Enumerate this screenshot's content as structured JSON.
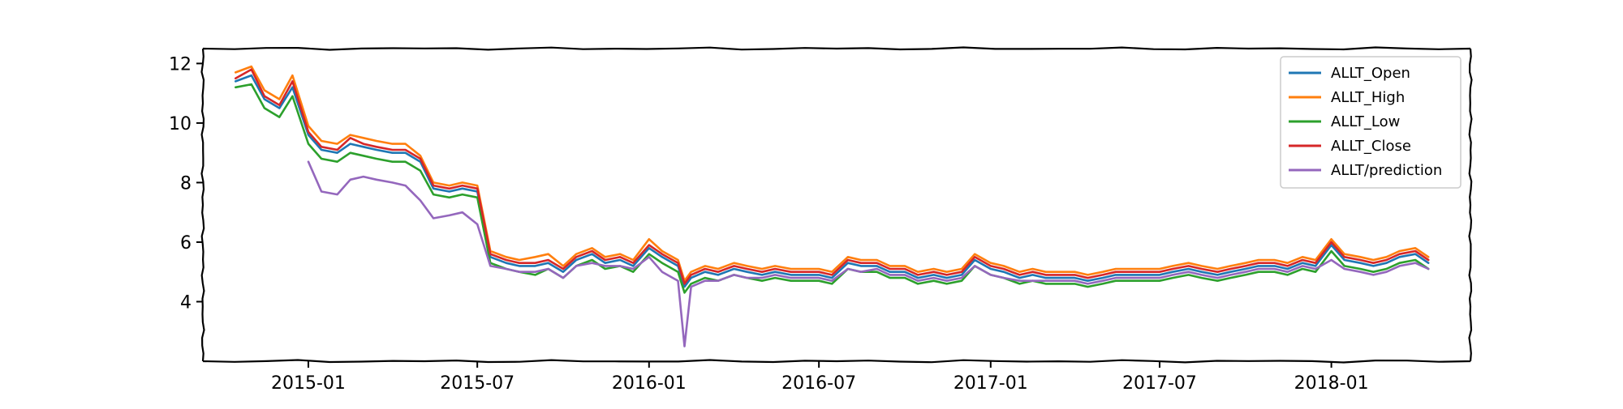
{
  "chart_data": {
    "type": "line",
    "title": "",
    "xlabel": "",
    "ylabel": "",
    "xlim": [
      "2014-09-10",
      "2018-05-30"
    ],
    "ylim": [
      2.0,
      12.5
    ],
    "x_ticks": [
      "2015-01",
      "2015-07",
      "2016-01",
      "2016-07",
      "2017-01",
      "2017-07",
      "2018-01"
    ],
    "y_ticks": [
      4,
      6,
      8,
      10,
      12
    ],
    "grid": false,
    "legend_position": "top-right",
    "x": [
      "2014-10-15",
      "2014-11-01",
      "2014-11-15",
      "2014-12-01",
      "2014-12-15",
      "2015-01-01",
      "2015-01-15",
      "2015-02-01",
      "2015-02-15",
      "2015-03-01",
      "2015-03-15",
      "2015-04-01",
      "2015-04-15",
      "2015-05-01",
      "2015-05-15",
      "2015-06-01",
      "2015-06-15",
      "2015-07-01",
      "2015-07-15",
      "2015-08-01",
      "2015-08-15",
      "2015-09-01",
      "2015-09-15",
      "2015-10-01",
      "2015-10-15",
      "2015-11-01",
      "2015-11-15",
      "2015-12-01",
      "2015-12-15",
      "2016-01-01",
      "2016-01-15",
      "2016-02-01",
      "2016-02-08",
      "2016-02-15",
      "2016-03-01",
      "2016-03-15",
      "2016-04-01",
      "2016-04-15",
      "2016-05-01",
      "2016-05-15",
      "2016-06-01",
      "2016-06-15",
      "2016-07-01",
      "2016-07-15",
      "2016-08-01",
      "2016-08-15",
      "2016-09-01",
      "2016-09-15",
      "2016-10-01",
      "2016-10-15",
      "2016-11-01",
      "2016-11-15",
      "2016-12-01",
      "2016-12-15",
      "2017-01-01",
      "2017-01-15",
      "2017-02-01",
      "2017-02-15",
      "2017-03-01",
      "2017-03-15",
      "2017-04-01",
      "2017-04-15",
      "2017-05-01",
      "2017-05-15",
      "2017-06-01",
      "2017-06-15",
      "2017-07-01",
      "2017-07-15",
      "2017-08-01",
      "2017-08-15",
      "2017-09-01",
      "2017-09-15",
      "2017-10-01",
      "2017-10-15",
      "2017-11-01",
      "2017-11-15",
      "2017-12-01",
      "2017-12-15",
      "2018-01-01",
      "2018-01-15",
      "2018-02-01",
      "2018-02-15",
      "2018-03-01",
      "2018-03-15",
      "2018-04-01",
      "2018-04-15"
    ],
    "series": [
      {
        "name": "ALLT_Open",
        "color": "#1f77b4",
        "values": [
          11.4,
          11.6,
          10.8,
          10.5,
          11.2,
          9.6,
          9.1,
          9.0,
          9.3,
          9.2,
          9.1,
          9.0,
          9.0,
          8.7,
          7.8,
          7.7,
          7.8,
          7.7,
          5.5,
          5.3,
          5.2,
          5.2,
          5.3,
          5.0,
          5.4,
          5.6,
          5.3,
          5.4,
          5.2,
          5.8,
          5.5,
          5.2,
          4.5,
          4.8,
          5.0,
          4.9,
          5.1,
          5.0,
          4.9,
          5.0,
          4.9,
          4.9,
          4.9,
          4.8,
          5.3,
          5.2,
          5.2,
          5.0,
          5.0,
          4.8,
          4.9,
          4.8,
          4.9,
          5.4,
          5.1,
          5.0,
          4.8,
          4.9,
          4.8,
          4.8,
          4.8,
          4.7,
          4.8,
          4.9,
          4.9,
          4.9,
          4.9,
          5.0,
          5.1,
          5.0,
          4.9,
          5.0,
          5.1,
          5.2,
          5.2,
          5.1,
          5.3,
          5.2,
          5.9,
          5.4,
          5.3,
          5.2,
          5.3,
          5.5,
          5.6,
          5.3
        ]
      },
      {
        "name": "ALLT_High",
        "color": "#ff7f0e",
        "values": [
          11.7,
          11.9,
          11.1,
          10.8,
          11.6,
          9.9,
          9.4,
          9.3,
          9.6,
          9.5,
          9.4,
          9.3,
          9.3,
          8.9,
          8.0,
          7.9,
          8.0,
          7.9,
          5.7,
          5.5,
          5.4,
          5.5,
          5.6,
          5.2,
          5.6,
          5.8,
          5.5,
          5.6,
          5.4,
          6.1,
          5.7,
          5.4,
          4.7,
          5.0,
          5.2,
          5.1,
          5.3,
          5.2,
          5.1,
          5.2,
          5.1,
          5.1,
          5.1,
          5.0,
          5.5,
          5.4,
          5.4,
          5.2,
          5.2,
          5.0,
          5.1,
          5.0,
          5.1,
          5.6,
          5.3,
          5.2,
          5.0,
          5.1,
          5.0,
          5.0,
          5.0,
          4.9,
          5.0,
          5.1,
          5.1,
          5.1,
          5.1,
          5.2,
          5.3,
          5.2,
          5.1,
          5.2,
          5.3,
          5.4,
          5.4,
          5.3,
          5.5,
          5.4,
          6.1,
          5.6,
          5.5,
          5.4,
          5.5,
          5.7,
          5.8,
          5.5
        ]
      },
      {
        "name": "ALLT_Low",
        "color": "#2ca02c",
        "values": [
          11.2,
          11.3,
          10.5,
          10.2,
          10.9,
          9.3,
          8.8,
          8.7,
          9.0,
          8.9,
          8.8,
          8.7,
          8.7,
          8.4,
          7.6,
          7.5,
          7.6,
          7.5,
          5.3,
          5.1,
          5.0,
          4.9,
          5.1,
          4.8,
          5.2,
          5.4,
          5.1,
          5.2,
          5.0,
          5.6,
          5.3,
          5.0,
          4.3,
          4.6,
          4.8,
          4.7,
          4.9,
          4.8,
          4.7,
          4.8,
          4.7,
          4.7,
          4.7,
          4.6,
          5.1,
          5.0,
          5.0,
          4.8,
          4.8,
          4.6,
          4.7,
          4.6,
          4.7,
          5.2,
          4.9,
          4.8,
          4.6,
          4.7,
          4.6,
          4.6,
          4.6,
          4.5,
          4.6,
          4.7,
          4.7,
          4.7,
          4.7,
          4.8,
          4.9,
          4.8,
          4.7,
          4.8,
          4.9,
          5.0,
          5.0,
          4.9,
          5.1,
          5.0,
          5.7,
          5.2,
          5.1,
          5.0,
          5.1,
          5.3,
          5.4,
          5.1
        ]
      },
      {
        "name": "ALLT_Close",
        "color": "#d62728",
        "values": [
          11.5,
          11.8,
          10.9,
          10.6,
          11.4,
          9.7,
          9.2,
          9.1,
          9.5,
          9.3,
          9.2,
          9.1,
          9.1,
          8.8,
          7.9,
          7.8,
          7.9,
          7.8,
          5.6,
          5.4,
          5.3,
          5.3,
          5.4,
          5.1,
          5.5,
          5.7,
          5.4,
          5.5,
          5.3,
          5.9,
          5.6,
          5.3,
          4.6,
          4.9,
          5.1,
          5.0,
          5.2,
          5.1,
          5.0,
          5.1,
          5.0,
          5.0,
          5.0,
          4.9,
          5.4,
          5.3,
          5.3,
          5.1,
          5.1,
          4.9,
          5.0,
          4.9,
          5.0,
          5.5,
          5.2,
          5.1,
          4.9,
          5.0,
          4.9,
          4.9,
          4.9,
          4.8,
          4.9,
          5.0,
          5.0,
          5.0,
          5.0,
          5.1,
          5.2,
          5.1,
          5.0,
          5.1,
          5.2,
          5.3,
          5.3,
          5.2,
          5.4,
          5.3,
          6.0,
          5.5,
          5.4,
          5.3,
          5.4,
          5.6,
          5.7,
          5.4
        ]
      },
      {
        "name": "ALLT/prediction",
        "color": "#9467bd",
        "values": [
          null,
          null,
          null,
          null,
          null,
          8.7,
          7.7,
          7.6,
          8.1,
          8.2,
          8.1,
          8.0,
          7.9,
          7.4,
          6.8,
          6.9,
          7.0,
          6.6,
          5.2,
          5.1,
          5.0,
          5.0,
          5.1,
          4.8,
          5.2,
          5.3,
          5.2,
          5.2,
          5.1,
          5.5,
          5.0,
          4.7,
          2.5,
          4.5,
          4.7,
          4.7,
          4.9,
          4.8,
          4.8,
          4.9,
          4.8,
          4.8,
          4.8,
          4.7,
          5.1,
          5.0,
          5.1,
          4.9,
          4.9,
          4.7,
          4.8,
          4.7,
          4.8,
          5.2,
          4.9,
          4.8,
          4.7,
          4.7,
          4.7,
          4.7,
          4.7,
          4.6,
          4.7,
          4.8,
          4.8,
          4.8,
          4.8,
          4.9,
          5.0,
          4.9,
          4.8,
          4.9,
          5.0,
          5.1,
          5.1,
          5.0,
          5.2,
          5.1,
          5.4,
          5.1,
          5.0,
          4.9,
          5.0,
          5.2,
          5.3,
          5.1
        ]
      }
    ]
  }
}
